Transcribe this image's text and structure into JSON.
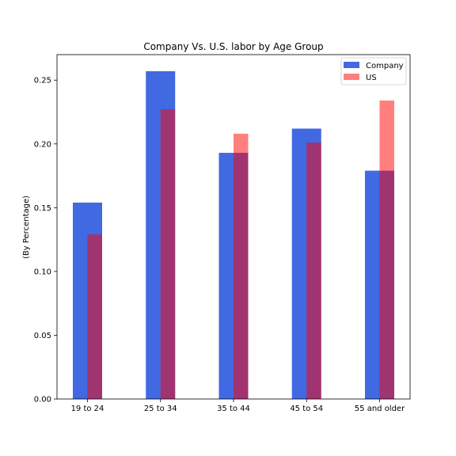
{
  "chart_data": {
    "type": "bar",
    "title": "Company Vs. U.S. labor by Age Group",
    "xlabel": "",
    "ylabel": "(By Percentage)",
    "categories": [
      "19 to 24",
      "25 to 34",
      "35 to 44",
      "45 to 54",
      "55 and older"
    ],
    "series": [
      {
        "name": "Company",
        "color": "#4169e1",
        "opacity": 1.0,
        "values": [
          0.154,
          0.257,
          0.193,
          0.212,
          0.179
        ]
      },
      {
        "name": "US",
        "color": "#ff0000",
        "opacity": 0.5,
        "values": [
          0.129,
          0.227,
          0.208,
          0.201,
          0.234
        ]
      }
    ],
    "ylim": [
      0,
      0.27
    ],
    "yticks": [
      0.0,
      0.05,
      0.1,
      0.15,
      0.2,
      0.25
    ],
    "ytick_labels": [
      "0.00",
      "0.05",
      "0.10",
      "0.15",
      "0.20",
      "0.25"
    ],
    "grid": false,
    "legend_position": "top-right"
  }
}
